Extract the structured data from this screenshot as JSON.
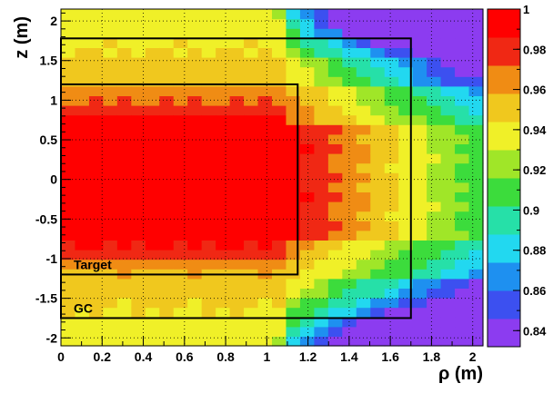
{
  "chart_data": {
    "type": "heatmap",
    "title": "",
    "xlabel": "ρ (m)",
    "ylabel": "z (m)",
    "xlim": [
      0,
      2.05
    ],
    "ylim": [
      -2.1,
      2.15
    ],
    "x_ticks": [
      "0",
      "0.2",
      "0.4",
      "0.6",
      "0.8",
      "1",
      "1.2",
      "1.4",
      "1.6",
      "1.8",
      "2"
    ],
    "y_ticks": [
      "-2",
      "-1.5",
      "-1",
      "-0.5",
      "0",
      "0.5",
      "1",
      "1.5",
      "2"
    ],
    "grid": true,
    "colorbar": {
      "min": 0.832,
      "max": 1.0,
      "ticks": [
        "0.84",
        "0.86",
        "0.88",
        "0.9",
        "0.92",
        "0.94",
        "0.96",
        "0.98",
        "1"
      ],
      "colors": [
        "#8c3cf0",
        "#3c50f0",
        "#1e90f0",
        "#22d8f0",
        "#26e0a8",
        "#3cdc3c",
        "#a0e628",
        "#f0f028",
        "#f0c81e",
        "#f08c14",
        "#f02814",
        "#ff0000"
      ]
    },
    "x_bins": 30,
    "y_bins": 35,
    "x_range": [
      0,
      2.05
    ],
    "y_range": [
      -2.1,
      2.15
    ],
    "regions": [
      {
        "name": "Target",
        "rho_max": 1.15,
        "z_min": -1.2,
        "z_max": 1.2
      },
      {
        "name": "GC",
        "rho_max": 1.7,
        "z_min": -1.75,
        "z_max": 1.78
      }
    ]
  }
}
